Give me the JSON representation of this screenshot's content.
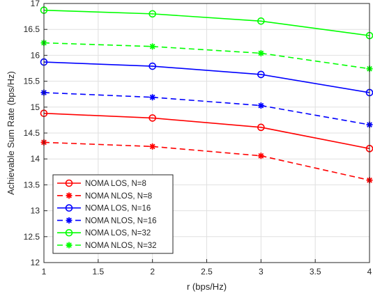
{
  "chart_data": {
    "type": "line",
    "title": "",
    "xlabel": "r (bps/Hz)",
    "ylabel": "Achievable Sum Rate (bps/Hz)",
    "xlim": [
      1,
      4
    ],
    "ylim": [
      12,
      17
    ],
    "xticks": [
      "1",
      "1.5",
      "2",
      "2.5",
      "3",
      "3.5",
      "4"
    ],
    "yticks": [
      "12",
      "12.5",
      "13",
      "13.5",
      "14",
      "14.5",
      "15",
      "15.5",
      "16",
      "16.5",
      "17"
    ],
    "grid": true,
    "legend_position": "bottom-left",
    "x": [
      1,
      2,
      3,
      4
    ],
    "series": [
      {
        "name": "NOMA LOS, N=8",
        "values": [
          14.88,
          14.79,
          14.61,
          14.2
        ],
        "color": "#ff0000",
        "dash": "solid",
        "marker": "circle"
      },
      {
        "name": "NOMA NLOS, N=8",
        "values": [
          14.32,
          14.24,
          14.06,
          13.59
        ],
        "color": "#ff0000",
        "dash": "dashed",
        "marker": "asterisk"
      },
      {
        "name": "NOMA LOS, N=16",
        "values": [
          15.87,
          15.79,
          15.63,
          15.28
        ],
        "color": "#0000ff",
        "dash": "solid",
        "marker": "circle"
      },
      {
        "name": "NOMA NLOS, N=16",
        "values": [
          15.28,
          15.19,
          15.03,
          14.66
        ],
        "color": "#0000ff",
        "dash": "dashed",
        "marker": "asterisk"
      },
      {
        "name": "NOMA LOS, N=32",
        "values": [
          16.87,
          16.8,
          16.66,
          16.38
        ],
        "color": "#00ff00",
        "dash": "solid",
        "marker": "circle"
      },
      {
        "name": "NOMA NLOS, N=32",
        "values": [
          16.24,
          16.17,
          16.04,
          15.74
        ],
        "color": "#00ff00",
        "dash": "dashed",
        "marker": "asterisk"
      }
    ]
  }
}
